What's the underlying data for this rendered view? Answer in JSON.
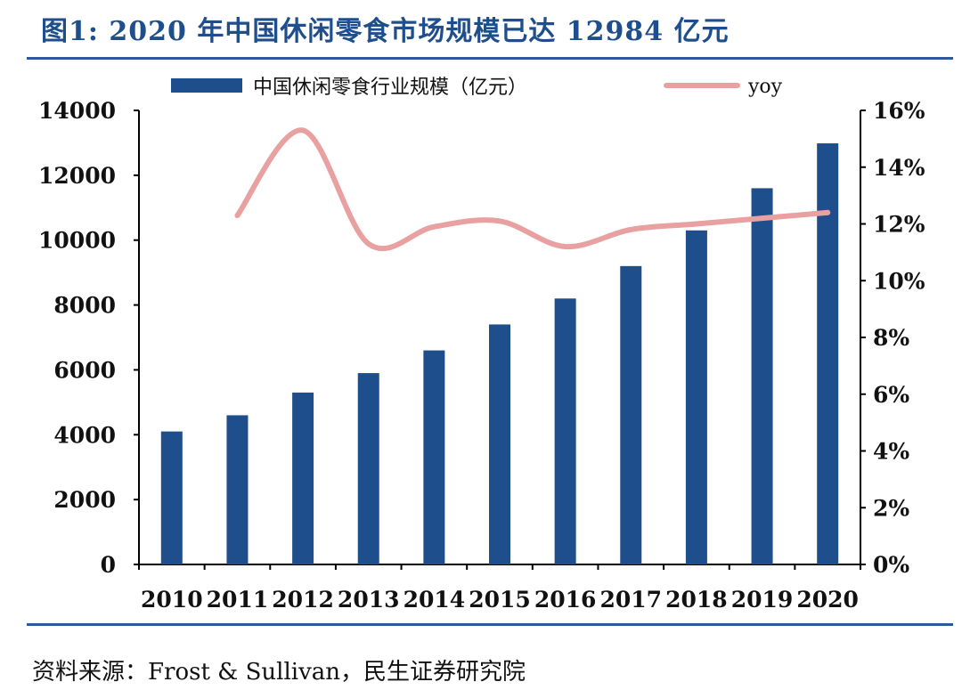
{
  "title": "图1: 2020 年中国休闲零食市场规模已达 12984 亿元",
  "source": "资料来源：Frost & Sullivan，民生证券研究院",
  "colors": {
    "bar": "#1f4e8c",
    "line": "#e9a0a0",
    "title": "#1f4e8c",
    "rule": "#2a5a9a"
  },
  "chart_data": {
    "type": "bar",
    "title": "图1: 2020 年中国休闲零食市场规模已达 12984 亿元",
    "categories": [
      "2010",
      "2011",
      "2012",
      "2013",
      "2014",
      "2015",
      "2016",
      "2017",
      "2018",
      "2019",
      "2020"
    ],
    "series": [
      {
        "name": "中国休闲零食行业规模（亿元）",
        "type": "bar",
        "axis": "left",
        "values": [
          4100,
          4600,
          5300,
          5900,
          6600,
          7400,
          8200,
          9200,
          10300,
          11600,
          12984
        ]
      },
      {
        "name": "yoy",
        "type": "line",
        "axis": "right",
        "values": [
          null,
          12.3,
          15.3,
          11.3,
          11.9,
          12.1,
          11.2,
          11.8,
          12.0,
          12.2,
          12.4
        ]
      }
    ],
    "y_left": {
      "min": 0,
      "max": 14000,
      "ticks": [
        "0",
        "2000",
        "4000",
        "6000",
        "8000",
        "10000",
        "12000",
        "14000"
      ]
    },
    "y_right": {
      "min": 0,
      "max": 16,
      "ticks": [
        "0%",
        "2%",
        "4%",
        "6%",
        "8%",
        "10%",
        "12%",
        "14%",
        "16%"
      ]
    },
    "legend": "top"
  }
}
